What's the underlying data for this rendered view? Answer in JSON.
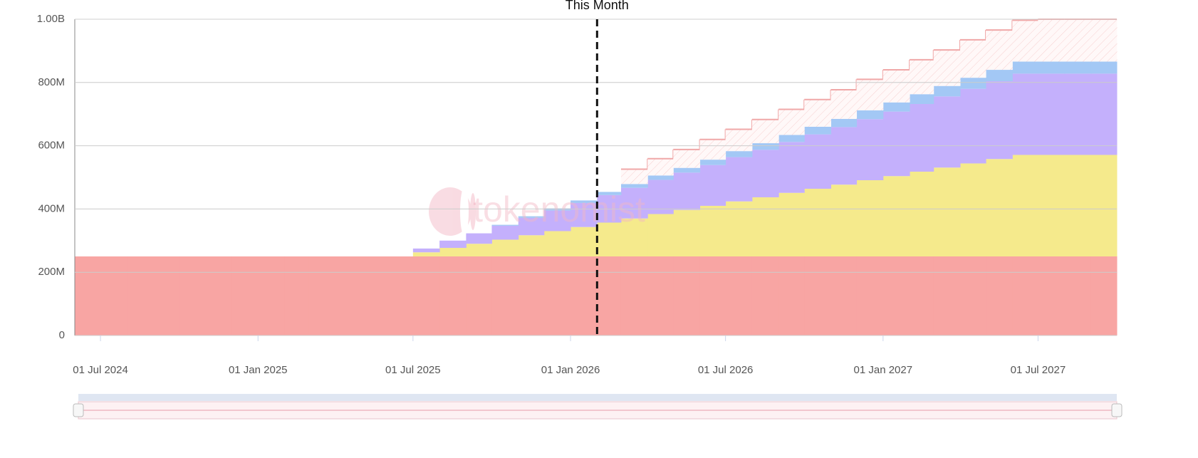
{
  "chart_data": {
    "type": "stepped-stacked-area",
    "annotation": {
      "label": "This Month",
      "x": "2026-02-01"
    },
    "watermark": "tokenomist",
    "xlim": [
      "2024-06-01",
      "2027-10-01"
    ],
    "xticks": [
      {
        "value": "2024-07-01",
        "label": "01 Jul 2024"
      },
      {
        "value": "2025-01-01",
        "label": "01 Jan 2025"
      },
      {
        "value": "2025-07-01",
        "label": "01 Jul 2025"
      },
      {
        "value": "2026-01-01",
        "label": "01 Jan 2026"
      },
      {
        "value": "2026-07-01",
        "label": "01 Jul 2026"
      },
      {
        "value": "2027-01-01",
        "label": "01 Jan 2027"
      },
      {
        "value": "2027-07-01",
        "label": "01 Jul 2027"
      }
    ],
    "ylim": [
      0,
      1000000000
    ],
    "yticks": [
      0,
      {
        "value": 200000000,
        "label": "200M"
      },
      {
        "value": 400000000,
        "label": "400M"
      },
      {
        "value": 600000000,
        "label": "600M"
      },
      {
        "value": 800000000,
        "label": "800M"
      },
      {
        "value": 1000000000,
        "label": "1.00B"
      }
    ],
    "grid": true,
    "x": [
      "2024-06-01",
      "2024-07-01",
      "2024-08-01",
      "2024-09-01",
      "2024-10-01",
      "2024-11-01",
      "2024-12-01",
      "2025-01-01",
      "2025-02-01",
      "2025-03-01",
      "2025-04-01",
      "2025-05-01",
      "2025-06-01",
      "2025-07-01",
      "2025-08-01",
      "2025-09-01",
      "2025-10-01",
      "2025-11-01",
      "2025-12-01",
      "2026-01-01",
      "2026-02-01",
      "2026-03-01",
      "2026-04-01",
      "2026-05-01",
      "2026-06-01",
      "2026-07-01",
      "2026-08-01",
      "2026-09-01",
      "2026-10-01",
      "2026-11-01",
      "2026-12-01",
      "2027-01-01",
      "2027-02-01",
      "2027-03-01",
      "2027-04-01",
      "2027-05-01",
      "2027-06-01",
      "2027-07-01",
      "2027-08-01",
      "2027-09-01"
    ],
    "series": [
      {
        "color": "#f8a5a3",
        "values": [
          250000000,
          250000000,
          250000000,
          250000000,
          250000000,
          250000000,
          250000000,
          250000000,
          250000000,
          250000000,
          250000000,
          250000000,
          250000000,
          250000000,
          250000000,
          250000000,
          250000000,
          250000000,
          250000000,
          250000000,
          250000000,
          250000000,
          250000000,
          250000000,
          250000000,
          250000000,
          250000000,
          250000000,
          250000000,
          250000000,
          250000000,
          250000000,
          250000000,
          250000000,
          250000000,
          250000000,
          250000000,
          250000000,
          250000000,
          250000000
        ]
      },
      {
        "color": "#f5ea8c",
        "values": [
          null,
          null,
          null,
          null,
          null,
          null,
          null,
          null,
          null,
          null,
          null,
          null,
          null,
          13000000,
          27000000,
          40000000,
          53000000,
          67000000,
          80000000,
          93000000,
          107000000,
          120000000,
          134000000,
          147000000,
          160000000,
          174000000,
          187000000,
          201000000,
          214000000,
          227000000,
          241000000,
          254000000,
          268000000,
          281000000,
          294000000,
          308000000,
          321000000,
          321000000,
          321000000,
          321000000
        ]
      },
      {
        "color": "#c4b0fc",
        "values": [
          null,
          null,
          null,
          null,
          null,
          null,
          null,
          null,
          null,
          null,
          null,
          null,
          null,
          12000000,
          23000000,
          33000000,
          44000000,
          55000000,
          65000000,
          76000000,
          87000000,
          97000000,
          108000000,
          118000000,
          129000000,
          140000000,
          150000000,
          161000000,
          172000000,
          182000000,
          193000000,
          204000000,
          214000000,
          225000000,
          236000000,
          246000000,
          257000000,
          257000000,
          257000000,
          257000000
        ]
      },
      {
        "color": "#a3c8f5",
        "values": [
          null,
          null,
          null,
          null,
          null,
          null,
          null,
          null,
          null,
          null,
          null,
          null,
          null,
          null,
          null,
          null,
          3000000,
          5000000,
          7000000,
          8000000,
          10000000,
          12000000,
          14000000,
          15000000,
          17000000,
          19000000,
          21000000,
          22000000,
          24000000,
          26000000,
          28000000,
          29000000,
          31000000,
          33000000,
          35000000,
          36000000,
          38000000,
          38000000,
          38000000,
          38000000
        ]
      },
      {
        "color": "#f0a8a8",
        "hatched": true,
        "values": [
          null,
          null,
          null,
          null,
          null,
          null,
          null,
          null,
          null,
          null,
          null,
          null,
          null,
          null,
          null,
          null,
          null,
          null,
          null,
          null,
          null,
          47000000,
          53000000,
          58000000,
          64000000,
          69000000,
          75000000,
          81000000,
          86000000,
          92000000,
          98000000,
          103000000,
          109000000,
          114000000,
          120000000,
          126000000,
          131000000,
          134000000,
          134000000,
          134000000
        ]
      }
    ]
  }
}
